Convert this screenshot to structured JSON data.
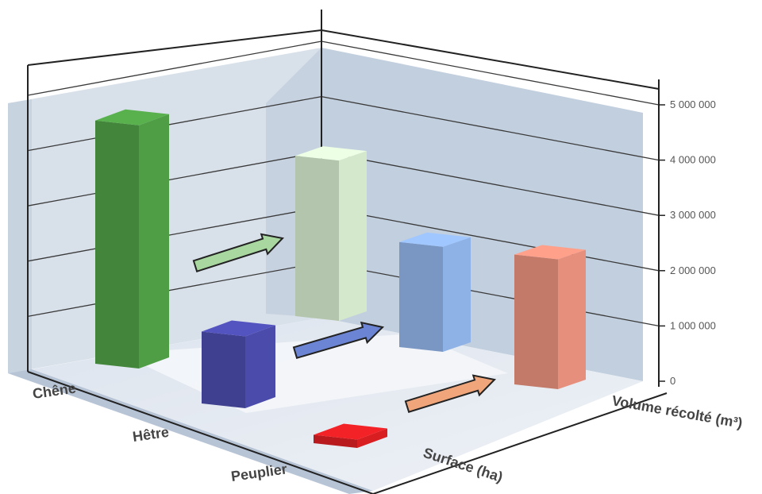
{
  "chart_data": {
    "type": "bar",
    "categories": [
      "Chêne",
      "Hêtre",
      "Peuplier"
    ],
    "series": [
      {
        "values": [
          4400000,
          1300000,
          150000
        ]
      },
      {
        "values": [
          2900000,
          1900000,
          2350000
        ]
      }
    ],
    "series_axis_labels": [
      "Surface (ha)",
      "Volume récolté (m³)"
    ],
    "ylim": [
      0,
      5000000
    ],
    "yticks": [
      0,
      1000000,
      2000000,
      3000000,
      4000000,
      5000000
    ],
    "ytick_labels": [
      "0",
      "1 000 000",
      "2 000 000",
      "3 000 000",
      "4 000 000",
      "5 000 000"
    ],
    "grid": true,
    "colors": {
      "surface": [
        "#4f9e45",
        "#4b4bab",
        "#d91e22"
      ],
      "volume": [
        "#d4e8cc",
        "#8fb2e6",
        "#e68f7c"
      ],
      "arrows": [
        "#a8d8a0",
        "#6b85d4",
        "#f0a67a"
      ]
    }
  }
}
